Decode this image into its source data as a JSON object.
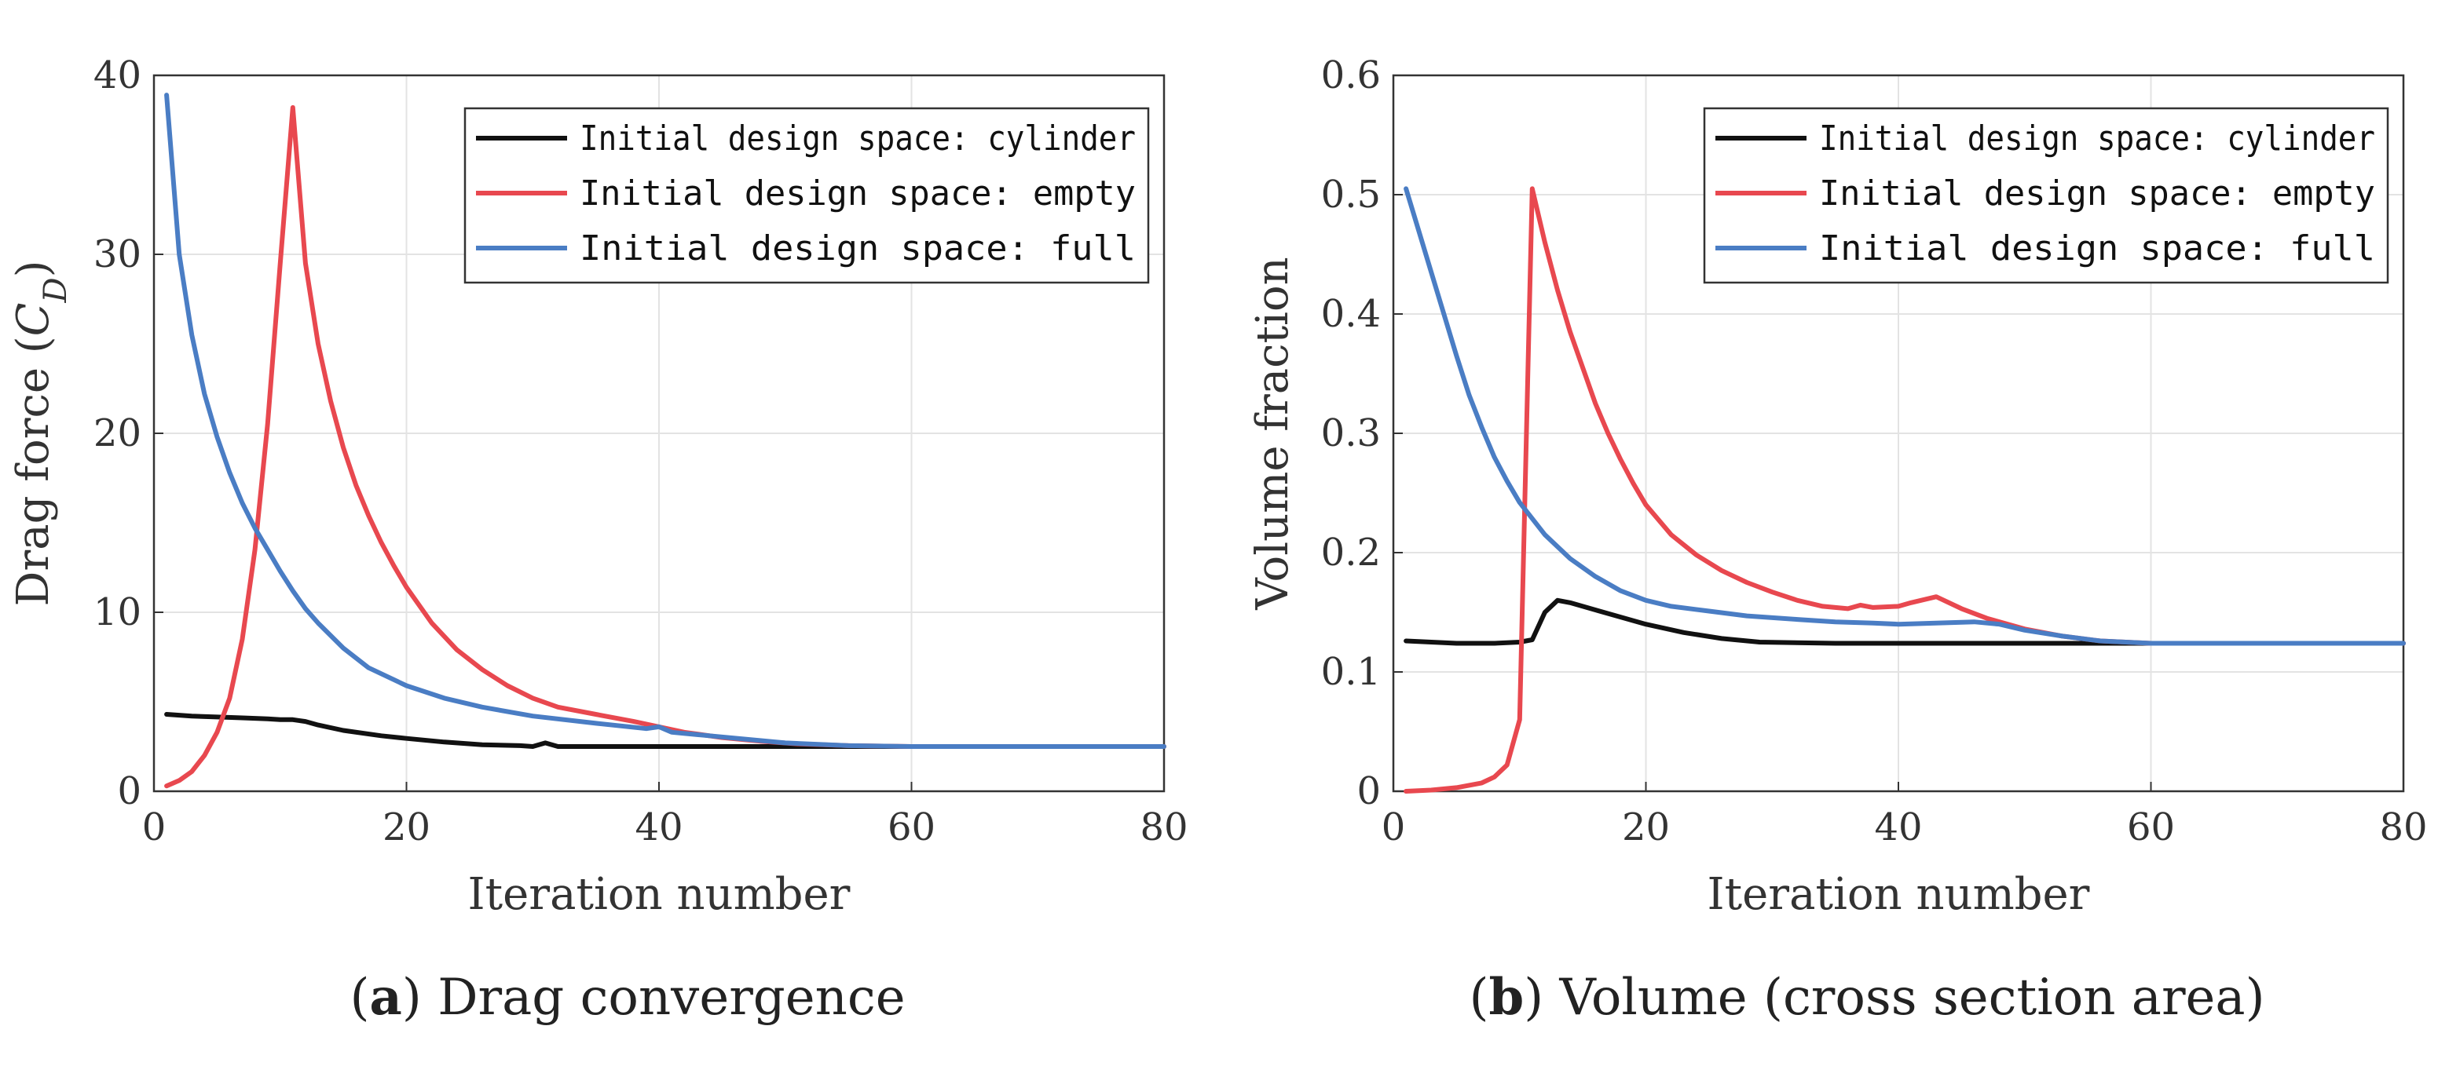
{
  "chart_data": [
    {
      "type": "line",
      "panel": "a",
      "caption_letter": "a",
      "caption_text": "Drag convergence",
      "xlabel": "Iteration number",
      "ylabel_main": "Drag force (",
      "ylabel_var": "C",
      "ylabel_sub": "D",
      "ylabel_end": ")",
      "xlim": [
        0,
        80
      ],
      "ylim": [
        0,
        40
      ],
      "xticks": [
        0,
        20,
        40,
        60,
        80
      ],
      "yticks": [
        0,
        10,
        20,
        30,
        40
      ],
      "grid": true,
      "legend_position": "top-right",
      "series": [
        {
          "name": "Initial design space: cylinder",
          "color": "#111111",
          "points": [
            [
              1,
              4.3
            ],
            [
              3,
              4.2
            ],
            [
              5,
              4.15
            ],
            [
              7,
              4.1
            ],
            [
              9,
              4.05
            ],
            [
              10,
              4.0
            ],
            [
              11,
              4.0
            ],
            [
              12,
              3.9
            ],
            [
              13,
              3.7
            ],
            [
              15,
              3.4
            ],
            [
              18,
              3.1
            ],
            [
              20,
              2.95
            ],
            [
              23,
              2.75
            ],
            [
              26,
              2.6
            ],
            [
              29,
              2.55
            ],
            [
              30,
              2.5
            ],
            [
              31,
              2.7
            ],
            [
              32,
              2.5
            ],
            [
              35,
              2.5
            ],
            [
              40,
              2.5
            ],
            [
              50,
              2.5
            ],
            [
              60,
              2.5
            ],
            [
              70,
              2.5
            ],
            [
              80,
              2.5
            ]
          ]
        },
        {
          "name": "Initial design space: empty",
          "color": "#e8484f",
          "points": [
            [
              1,
              0.3
            ],
            [
              2,
              0.6
            ],
            [
              3,
              1.1
            ],
            [
              4,
              2.0
            ],
            [
              5,
              3.3
            ],
            [
              6,
              5.2
            ],
            [
              7,
              8.5
            ],
            [
              8,
              13.5
            ],
            [
              9,
              20.5
            ],
            [
              10,
              29.5
            ],
            [
              11,
              38.2
            ],
            [
              12,
              29.5
            ],
            [
              13,
              25.0
            ],
            [
              14,
              21.8
            ],
            [
              15,
              19.2
            ],
            [
              16,
              17.1
            ],
            [
              17,
              15.4
            ],
            [
              18,
              13.9
            ],
            [
              19,
              12.6
            ],
            [
              20,
              11.4
            ],
            [
              22,
              9.4
            ],
            [
              24,
              7.9
            ],
            [
              26,
              6.8
            ],
            [
              28,
              5.9
            ],
            [
              30,
              5.2
            ],
            [
              32,
              4.7
            ],
            [
              35,
              4.3
            ],
            [
              38,
              3.9
            ],
            [
              40,
              3.6
            ],
            [
              42,
              3.3
            ],
            [
              45,
              3.0
            ],
            [
              48,
              2.8
            ],
            [
              51,
              2.65
            ],
            [
              55,
              2.55
            ],
            [
              60,
              2.5
            ],
            [
              70,
              2.5
            ],
            [
              80,
              2.5
            ]
          ]
        },
        {
          "name": "Initial design space: full",
          "color": "#4a7dc4",
          "points": [
            [
              1,
              38.9
            ],
            [
              2,
              30.0
            ],
            [
              3,
              25.5
            ],
            [
              4,
              22.2
            ],
            [
              5,
              19.8
            ],
            [
              6,
              17.8
            ],
            [
              7,
              16.1
            ],
            [
              8,
              14.7
            ],
            [
              9,
              13.5
            ],
            [
              10,
              12.3
            ],
            [
              11,
              11.2
            ],
            [
              12,
              10.2
            ],
            [
              13,
              9.4
            ],
            [
              15,
              8.0
            ],
            [
              17,
              6.9
            ],
            [
              20,
              5.9
            ],
            [
              23,
              5.2
            ],
            [
              26,
              4.7
            ],
            [
              30,
              4.2
            ],
            [
              35,
              3.8
            ],
            [
              39,
              3.5
            ],
            [
              40,
              3.6
            ],
            [
              41,
              3.3
            ],
            [
              44,
              3.1
            ],
            [
              47,
              2.9
            ],
            [
              50,
              2.7
            ],
            [
              55,
              2.55
            ],
            [
              60,
              2.5
            ],
            [
              70,
              2.5
            ],
            [
              80,
              2.5
            ]
          ]
        }
      ]
    },
    {
      "type": "line",
      "panel": "b",
      "caption_letter": "b",
      "caption_text": "Volume (cross section area)",
      "xlabel": "Iteration number",
      "ylabel": "Volume fraction",
      "xlim": [
        0,
        80
      ],
      "ylim": [
        0,
        0.6
      ],
      "xticks": [
        0,
        20,
        40,
        60,
        80
      ],
      "yticks": [
        0,
        0.1,
        0.2,
        0.3,
        0.4,
        0.5,
        0.6
      ],
      "grid": true,
      "legend_position": "top-right",
      "series": [
        {
          "name": "Initial design space: cylinder",
          "color": "#111111",
          "points": [
            [
              1,
              0.126
            ],
            [
              3,
              0.125
            ],
            [
              5,
              0.124
            ],
            [
              8,
              0.124
            ],
            [
              10,
              0.125
            ],
            [
              11,
              0.127
            ],
            [
              12,
              0.15
            ],
            [
              13,
              0.16
            ],
            [
              14,
              0.158
            ],
            [
              16,
              0.152
            ],
            [
              18,
              0.146
            ],
            [
              20,
              0.14
            ],
            [
              23,
              0.133
            ],
            [
              26,
              0.128
            ],
            [
              29,
              0.125
            ],
            [
              35,
              0.124
            ],
            [
              40,
              0.124
            ],
            [
              50,
              0.124
            ],
            [
              60,
              0.124
            ],
            [
              70,
              0.124
            ],
            [
              80,
              0.124
            ]
          ]
        },
        {
          "name": "Initial design space: empty",
          "color": "#e8484f",
          "points": [
            [
              1,
              0.0
            ],
            [
              3,
              0.001
            ],
            [
              5,
              0.003
            ],
            [
              7,
              0.007
            ],
            [
              8,
              0.012
            ],
            [
              9,
              0.022
            ],
            [
              10,
              0.06
            ],
            [
              11,
              0.505
            ],
            [
              12,
              0.46
            ],
            [
              13,
              0.42
            ],
            [
              14,
              0.385
            ],
            [
              15,
              0.355
            ],
            [
              16,
              0.325
            ],
            [
              17,
              0.3
            ],
            [
              18,
              0.278
            ],
            [
              19,
              0.258
            ],
            [
              20,
              0.24
            ],
            [
              22,
              0.215
            ],
            [
              24,
              0.198
            ],
            [
              26,
              0.185
            ],
            [
              28,
              0.175
            ],
            [
              30,
              0.167
            ],
            [
              32,
              0.16
            ],
            [
              34,
              0.155
            ],
            [
              36,
              0.153
            ],
            [
              37,
              0.156
            ],
            [
              38,
              0.154
            ],
            [
              40,
              0.155
            ],
            [
              41,
              0.158
            ],
            [
              43,
              0.163
            ],
            [
              45,
              0.153
            ],
            [
              47,
              0.145
            ],
            [
              50,
              0.136
            ],
            [
              53,
              0.13
            ],
            [
              56,
              0.126
            ],
            [
              60,
              0.124
            ],
            [
              70,
              0.124
            ],
            [
              80,
              0.124
            ]
          ]
        },
        {
          "name": "Initial design space: full",
          "color": "#4a7dc4",
          "points": [
            [
              1,
              0.505
            ],
            [
              2,
              0.47
            ],
            [
              3,
              0.435
            ],
            [
              4,
              0.4
            ],
            [
              5,
              0.365
            ],
            [
              6,
              0.332
            ],
            [
              7,
              0.305
            ],
            [
              8,
              0.28
            ],
            [
              9,
              0.26
            ],
            [
              10,
              0.242
            ],
            [
              12,
              0.215
            ],
            [
              14,
              0.195
            ],
            [
              16,
              0.18
            ],
            [
              18,
              0.168
            ],
            [
              20,
              0.16
            ],
            [
              22,
              0.155
            ],
            [
              25,
              0.151
            ],
            [
              28,
              0.147
            ],
            [
              32,
              0.144
            ],
            [
              35,
              0.142
            ],
            [
              38,
              0.141
            ],
            [
              40,
              0.14
            ],
            [
              43,
              0.141
            ],
            [
              46,
              0.142
            ],
            [
              48,
              0.14
            ],
            [
              50,
              0.135
            ],
            [
              53,
              0.13
            ],
            [
              56,
              0.126
            ],
            [
              60,
              0.124
            ],
            [
              70,
              0.124
            ],
            [
              80,
              0.124
            ]
          ]
        }
      ]
    }
  ]
}
